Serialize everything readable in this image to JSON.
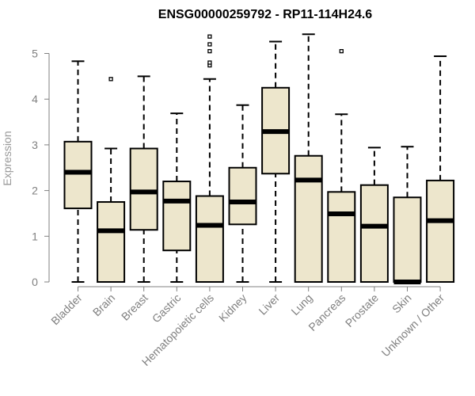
{
  "chart_data": {
    "type": "boxplot",
    "title": "ENSG00000259792 - RP11-114H24.6",
    "xlabel": "",
    "ylabel": "Expression",
    "ylim": [
      0,
      5.5
    ],
    "yticks": [
      0,
      1,
      2,
      3,
      4,
      5
    ],
    "box_fill": "#ede6cc",
    "categories": [
      "Bladder",
      "Brain",
      "Breast",
      "Gastric",
      "Hematopoietic cells",
      "Kidney",
      "Liver",
      "Lung",
      "Pancreas",
      "Prostate",
      "Skin",
      "Unknown / Other"
    ],
    "boxes": [
      {
        "min": 0.0,
        "q1": 1.61,
        "median": 2.4,
        "q3": 3.07,
        "max": 4.83,
        "outliers": []
      },
      {
        "min": 0.0,
        "q1": 0.0,
        "median": 1.12,
        "q3": 1.75,
        "max": 2.92,
        "outliers": [
          4.44
        ]
      },
      {
        "min": 0.0,
        "q1": 1.14,
        "median": 1.97,
        "q3": 2.92,
        "max": 4.5,
        "outliers": []
      },
      {
        "min": 0.0,
        "q1": 0.69,
        "median": 1.77,
        "q3": 2.2,
        "max": 3.69,
        "outliers": []
      },
      {
        "min": 0.0,
        "q1": 0.0,
        "median": 1.24,
        "q3": 1.88,
        "max": 4.44,
        "outliers": [
          4.74,
          4.8,
          5.05,
          5.2,
          5.37
        ]
      },
      {
        "min": 0.0,
        "q1": 1.26,
        "median": 1.75,
        "q3": 2.5,
        "max": 3.87,
        "outliers": []
      },
      {
        "min": 0.0,
        "q1": 2.37,
        "median": 3.29,
        "q3": 4.25,
        "max": 5.26,
        "outliers": []
      },
      {
        "min": 0.0,
        "q1": 0.0,
        "median": 2.23,
        "q3": 2.76,
        "max": 5.42,
        "outliers": []
      },
      {
        "min": 0.0,
        "q1": 0.0,
        "median": 1.49,
        "q3": 1.97,
        "max": 3.67,
        "outliers": [
          5.05
        ]
      },
      {
        "min": 0.0,
        "q1": 0.0,
        "median": 1.22,
        "q3": 2.12,
        "max": 2.94,
        "outliers": []
      },
      {
        "min": 0.0,
        "q1": 0.0,
        "median": 0.0,
        "q3": 1.85,
        "max": 2.96,
        "outliers": []
      },
      {
        "min": 0.0,
        "q1": 0.0,
        "median": 1.34,
        "q3": 2.22,
        "max": 4.94,
        "outliers": []
      }
    ]
  }
}
